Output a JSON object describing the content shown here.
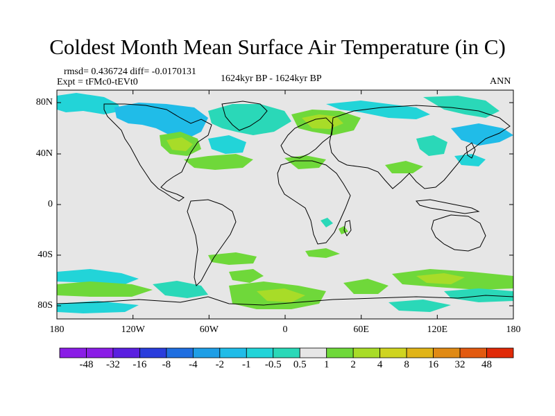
{
  "title": "Coldest Month Mean Surface Air Temperature (in C)",
  "stats": "rmsd= 0.436724 diff= -0.0170131",
  "experiment": "Expt = tFMc0-tEVt0",
  "period": "1624kyr BP - 1624kyr BP",
  "season": "ANN",
  "lat_labels": [
    "80N",
    "40N",
    "0",
    "40S",
    "80S"
  ],
  "lon_labels": [
    "180",
    "120W",
    "60W",
    "0",
    "60E",
    "120E",
    "180"
  ],
  "colorbar": {
    "labels": [
      "-48",
      "-32",
      "-16",
      "-8",
      "-4",
      "-2",
      "-1",
      "-0.5",
      "0.5",
      "1",
      "2",
      "4",
      "8",
      "16",
      "32",
      "48"
    ],
    "colors": [
      "#8a1de6",
      "#5a1fe0",
      "#2a3ddc",
      "#1f6ee0",
      "#1e9ee6",
      "#20bce8",
      "#22d4d8",
      "#2ad8b8",
      "#e6e6e6",
      "#6fd83a",
      "#a8dc28",
      "#cfd420",
      "#e0b418",
      "#e08a14",
      "#e25a10",
      "#e02a08"
    ]
  },
  "map_colors": {
    "land": "#e6e6e6",
    "ocean": "#e6e6e6",
    "cyan": "#22d4d8",
    "teal": "#2ad8b8",
    "lightblue": "#20bce8",
    "green": "#6fd83a",
    "yellowgreen": "#a8dc28",
    "olive": "#cfd420"
  }
}
